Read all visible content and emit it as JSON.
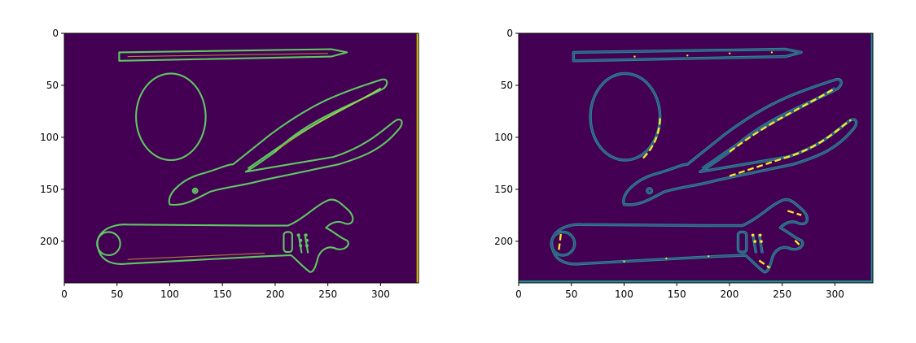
{
  "chart_data": [
    {
      "type": "heatmap",
      "title": "",
      "xlabel": "",
      "ylabel": "",
      "xlim": [
        0,
        336
      ],
      "ylim": [
        240,
        0
      ],
      "x_ticks": [
        0,
        50,
        100,
        150,
        200,
        250,
        300
      ],
      "y_ticks": [
        0,
        50,
        100,
        150,
        200
      ],
      "x_tick_labels": [
        "0",
        "50",
        "100",
        "150",
        "200",
        "250",
        "300"
      ],
      "y_tick_labels": [
        "0",
        "50",
        "100",
        "150",
        "200"
      ],
      "colors": {
        "background": "#440154",
        "edge": "#5ec962",
        "edge_bright": "#fde725",
        "edge_mid": "#21918c",
        "edge_dark": "#3b528b"
      }
    },
    {
      "type": "heatmap",
      "title": "",
      "xlabel": "",
      "ylabel": "",
      "xlim": [
        0,
        336
      ],
      "ylim": [
        240,
        0
      ],
      "x_ticks": [
        0,
        50,
        100,
        150,
        200,
        250,
        300
      ],
      "y_ticks": [
        0,
        50,
        100,
        150,
        200
      ],
      "x_tick_labels": [
        "0",
        "50",
        "100",
        "150",
        "200",
        "250",
        "300"
      ],
      "y_tick_labels": [
        "0",
        "50",
        "100",
        "150",
        "200"
      ],
      "colors": {
        "background": "#440154",
        "edge": "#21918c",
        "edge_bright": "#fde725",
        "edge_mid": "#35b779",
        "edge_dark": "#3b528b"
      }
    }
  ]
}
